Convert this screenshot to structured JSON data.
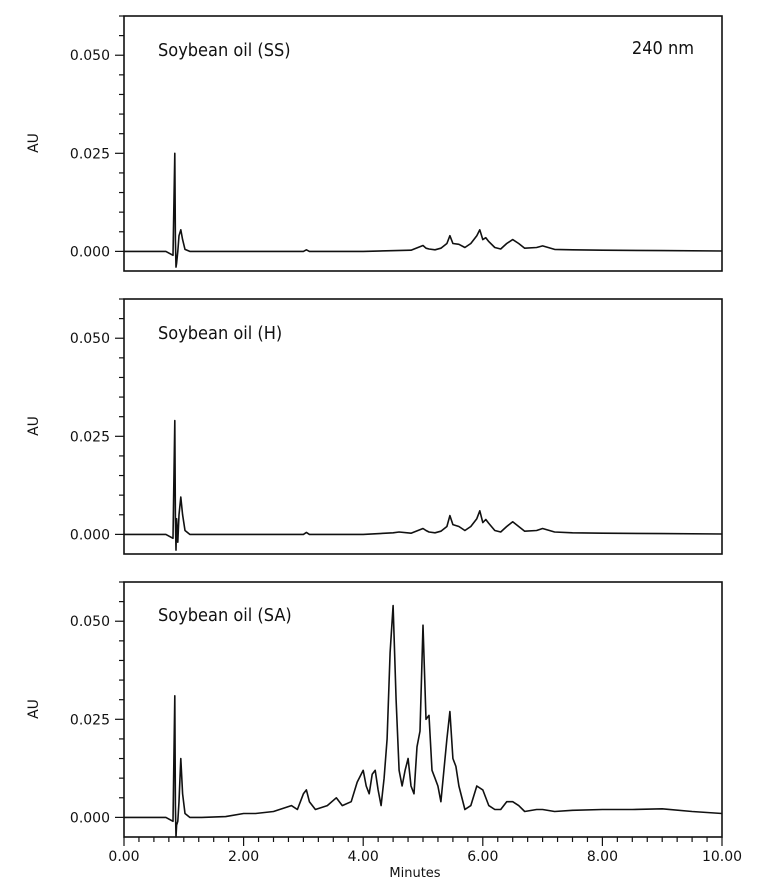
{
  "chart_data": [
    {
      "type": "line",
      "title": "Soybean oil (SS)",
      "annotation": "240 nm",
      "ylabel": "AU",
      "xlabel": "",
      "xlim": [
        0,
        10
      ],
      "ylim": [
        -0.005,
        0.06
      ],
      "yticks": [
        "0.000",
        "0.025",
        "0.050"
      ],
      "xticks": [],
      "series": [
        {
          "x": [
            0.0,
            0.7,
            0.82,
            0.85,
            0.86,
            0.87,
            0.88,
            0.9,
            0.92,
            0.95,
            0.98,
            1.02,
            1.1,
            1.3,
            2.0,
            3.0,
            3.05,
            3.1,
            4.0,
            4.8,
            5.0,
            5.05,
            5.1,
            5.2,
            5.3,
            5.4,
            5.45,
            5.5,
            5.6,
            5.7,
            5.8,
            5.9,
            5.95,
            6.0,
            6.05,
            6.1,
            6.2,
            6.3,
            6.4,
            6.5,
            6.6,
            6.7,
            6.9,
            7.0,
            7.2,
            7.5,
            8.0,
            9.0,
            10.0
          ],
          "y": [
            0.0,
            0.0,
            -0.001,
            0.025,
            0.003,
            -0.004,
            -0.003,
            0.0,
            0.004,
            0.0055,
            0.003,
            0.0005,
            0.0,
            0.0,
            0.0,
            0.0,
            0.0004,
            0.0,
            0.0,
            0.0003,
            0.0015,
            0.0008,
            0.0006,
            0.0004,
            0.0008,
            0.002,
            0.004,
            0.002,
            0.0018,
            0.001,
            0.002,
            0.004,
            0.0055,
            0.003,
            0.0035,
            0.0025,
            0.001,
            0.0006,
            0.002,
            0.003,
            0.002,
            0.0008,
            0.001,
            0.0014,
            0.0005,
            0.0004,
            0.0003,
            0.0002,
            0.0001
          ]
        }
      ]
    },
    {
      "type": "line",
      "title": "Soybean oil (H)",
      "ylabel": "AU",
      "xlabel": "",
      "xlim": [
        0,
        10
      ],
      "ylim": [
        -0.005,
        0.06
      ],
      "yticks": [
        "0.000",
        "0.025",
        "0.050"
      ],
      "xticks": [],
      "series": [
        {
          "x": [
            0.0,
            0.7,
            0.82,
            0.85,
            0.86,
            0.87,
            0.88,
            0.9,
            0.92,
            0.95,
            0.98,
            1.02,
            1.1,
            1.3,
            2.0,
            3.0,
            3.05,
            3.1,
            4.0,
            4.5,
            4.6,
            4.8,
            5.0,
            5.05,
            5.1,
            5.2,
            5.3,
            5.4,
            5.45,
            5.5,
            5.6,
            5.7,
            5.8,
            5.9,
            5.95,
            6.0,
            6.05,
            6.1,
            6.2,
            6.3,
            6.4,
            6.5,
            6.6,
            6.7,
            6.9,
            7.0,
            7.2,
            7.5,
            8.0,
            9.0,
            10.0
          ],
          "y": [
            0.0,
            0.0,
            -0.001,
            0.029,
            0.004,
            -0.004,
            0.004,
            -0.002,
            0.005,
            0.0095,
            0.005,
            0.001,
            0.0,
            0.0,
            0.0,
            0.0,
            0.0005,
            0.0,
            0.0,
            0.0004,
            0.0006,
            0.0003,
            0.0015,
            0.001,
            0.0006,
            0.0004,
            0.0008,
            0.002,
            0.0048,
            0.0025,
            0.002,
            0.001,
            0.002,
            0.004,
            0.006,
            0.003,
            0.0038,
            0.0028,
            0.001,
            0.0006,
            0.002,
            0.0032,
            0.002,
            0.0008,
            0.001,
            0.0015,
            0.0006,
            0.0004,
            0.0003,
            0.0002,
            0.0001
          ]
        }
      ]
    },
    {
      "type": "line",
      "title": "Soybean oil (SA)",
      "ylabel": "AU",
      "xlabel": "Minutes",
      "xlim": [
        0,
        10
      ],
      "ylim": [
        -0.005,
        0.06
      ],
      "yticks": [
        "0.000",
        "0.025",
        "0.050"
      ],
      "xticks": [
        "0.00",
        "2.00",
        "4.00",
        "6.00",
        "8.00",
        "10.00"
      ],
      "series": [
        {
          "x": [
            0.0,
            0.7,
            0.82,
            0.85,
            0.86,
            0.87,
            0.88,
            0.9,
            0.92,
            0.95,
            0.98,
            1.02,
            1.1,
            1.3,
            1.7,
            2.0,
            2.2,
            2.5,
            2.8,
            2.9,
            3.0,
            3.05,
            3.1,
            3.2,
            3.4,
            3.55,
            3.65,
            3.8,
            3.9,
            4.0,
            4.05,
            4.1,
            4.15,
            4.2,
            4.25,
            4.3,
            4.35,
            4.4,
            4.45,
            4.5,
            4.55,
            4.6,
            4.65,
            4.7,
            4.75,
            4.8,
            4.85,
            4.9,
            4.95,
            5.0,
            5.05,
            5.1,
            5.15,
            5.2,
            5.25,
            5.3,
            5.35,
            5.4,
            5.45,
            5.5,
            5.55,
            5.6,
            5.7,
            5.8,
            5.9,
            6.0,
            6.1,
            6.2,
            6.3,
            6.4,
            6.5,
            6.6,
            6.7,
            6.9,
            7.0,
            7.2,
            7.5,
            8.0,
            8.5,
            9.0,
            9.5,
            10.0
          ],
          "y": [
            0.0,
            0.0,
            -0.001,
            0.031,
            0.003,
            -0.005,
            -0.002,
            -0.001,
            0.004,
            0.015,
            0.006,
            0.001,
            0.0,
            0.0,
            0.0002,
            0.001,
            0.001,
            0.0015,
            0.003,
            0.002,
            0.006,
            0.007,
            0.004,
            0.002,
            0.003,
            0.005,
            0.003,
            0.004,
            0.009,
            0.012,
            0.008,
            0.006,
            0.011,
            0.012,
            0.007,
            0.003,
            0.01,
            0.02,
            0.042,
            0.054,
            0.03,
            0.012,
            0.008,
            0.012,
            0.015,
            0.008,
            0.006,
            0.018,
            0.022,
            0.049,
            0.025,
            0.026,
            0.012,
            0.01,
            0.008,
            0.004,
            0.012,
            0.02,
            0.027,
            0.015,
            0.013,
            0.008,
            0.002,
            0.003,
            0.008,
            0.007,
            0.003,
            0.002,
            0.002,
            0.004,
            0.004,
            0.003,
            0.0015,
            0.002,
            0.002,
            0.0015,
            0.0018,
            0.002,
            0.002,
            0.0022,
            0.0015,
            0.001
          ]
        }
      ]
    }
  ]
}
